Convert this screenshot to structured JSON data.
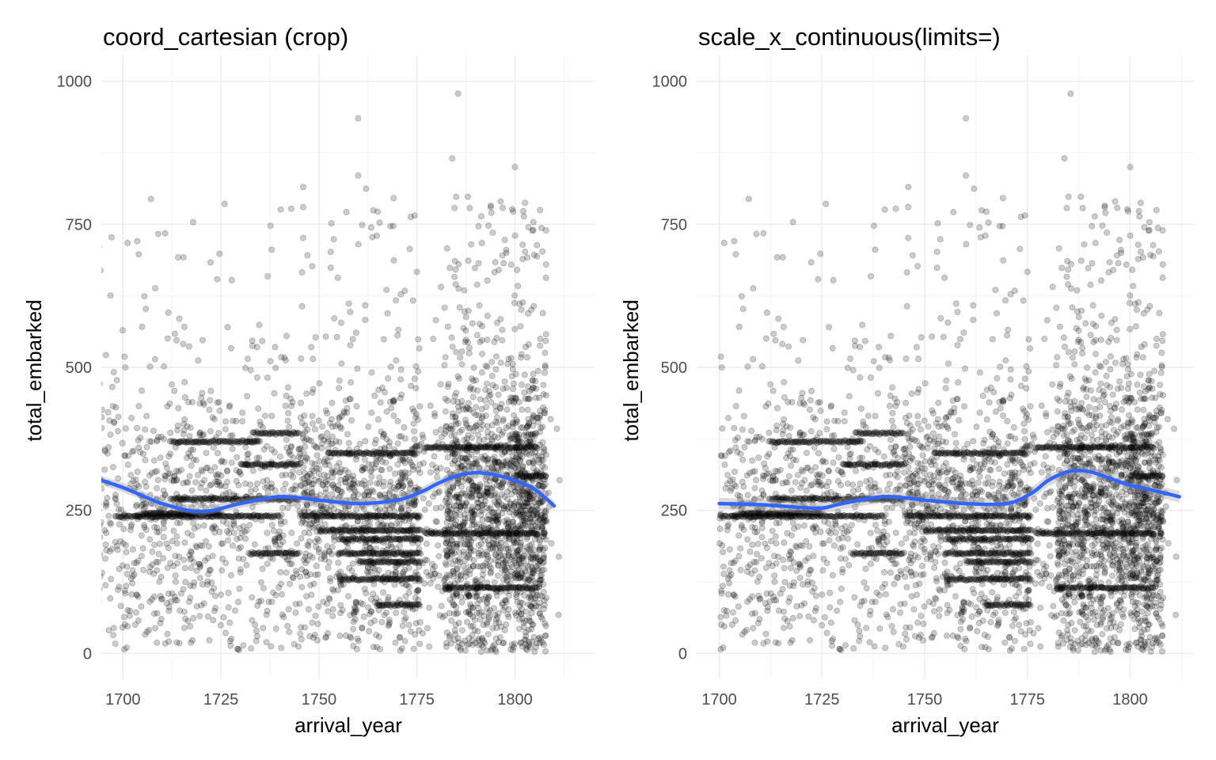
{
  "colors": {
    "points": "#000000",
    "smooth_line": "#3366ff",
    "ci_band": "#999999"
  },
  "chart_data": [
    {
      "type": "scatter",
      "title": "coord_cartesian (crop)",
      "xlabel": "arrival_year",
      "ylabel": "total_embarked",
      "xlim": [
        1694.5,
        1820.5
      ],
      "ylim": [
        -45,
        1045
      ],
      "x_ticks": [
        1700,
        1725,
        1750,
        1775,
        1800
      ],
      "y_ticks": [
        0,
        250,
        500,
        750,
        1000
      ],
      "grid": true,
      "clip": "crop",
      "point_alpha": 0.2,
      "smooth": {
        "x": [
          1692,
          1700,
          1710,
          1720,
          1730,
          1740,
          1750,
          1760,
          1770,
          1776,
          1780,
          1785,
          1790,
          1795,
          1800,
          1805,
          1810
        ],
        "y": [
          308,
          290,
          262,
          248,
          262,
          274,
          268,
          262,
          268,
          282,
          296,
          310,
          316,
          312,
          302,
          287,
          258
        ],
        "ci_halfwidth": 8
      }
    },
    {
      "type": "scatter",
      "title": "scale_x_continuous(limits=)",
      "xlabel": "arrival_year",
      "ylabel": "total_embarked",
      "xlim": [
        1694.5,
        1815.5
      ],
      "ylim": [
        -45,
        1045
      ],
      "x_ticks": [
        1700,
        1725,
        1750,
        1775,
        1800
      ],
      "y_ticks": [
        0,
        250,
        500,
        750,
        1000
      ],
      "grid": true,
      "clip": "limits",
      "point_alpha": 0.2,
      "smooth": {
        "x": [
          1700,
          1710,
          1720,
          1725,
          1730,
          1740,
          1750,
          1760,
          1770,
          1776,
          1780,
          1785,
          1790,
          1795,
          1800,
          1805,
          1812
        ],
        "y": [
          262,
          260,
          255,
          254,
          262,
          274,
          268,
          262,
          262,
          280,
          302,
          318,
          318,
          306,
          294,
          286,
          274
        ],
        "ci_halfwidth": 10
      }
    }
  ]
}
